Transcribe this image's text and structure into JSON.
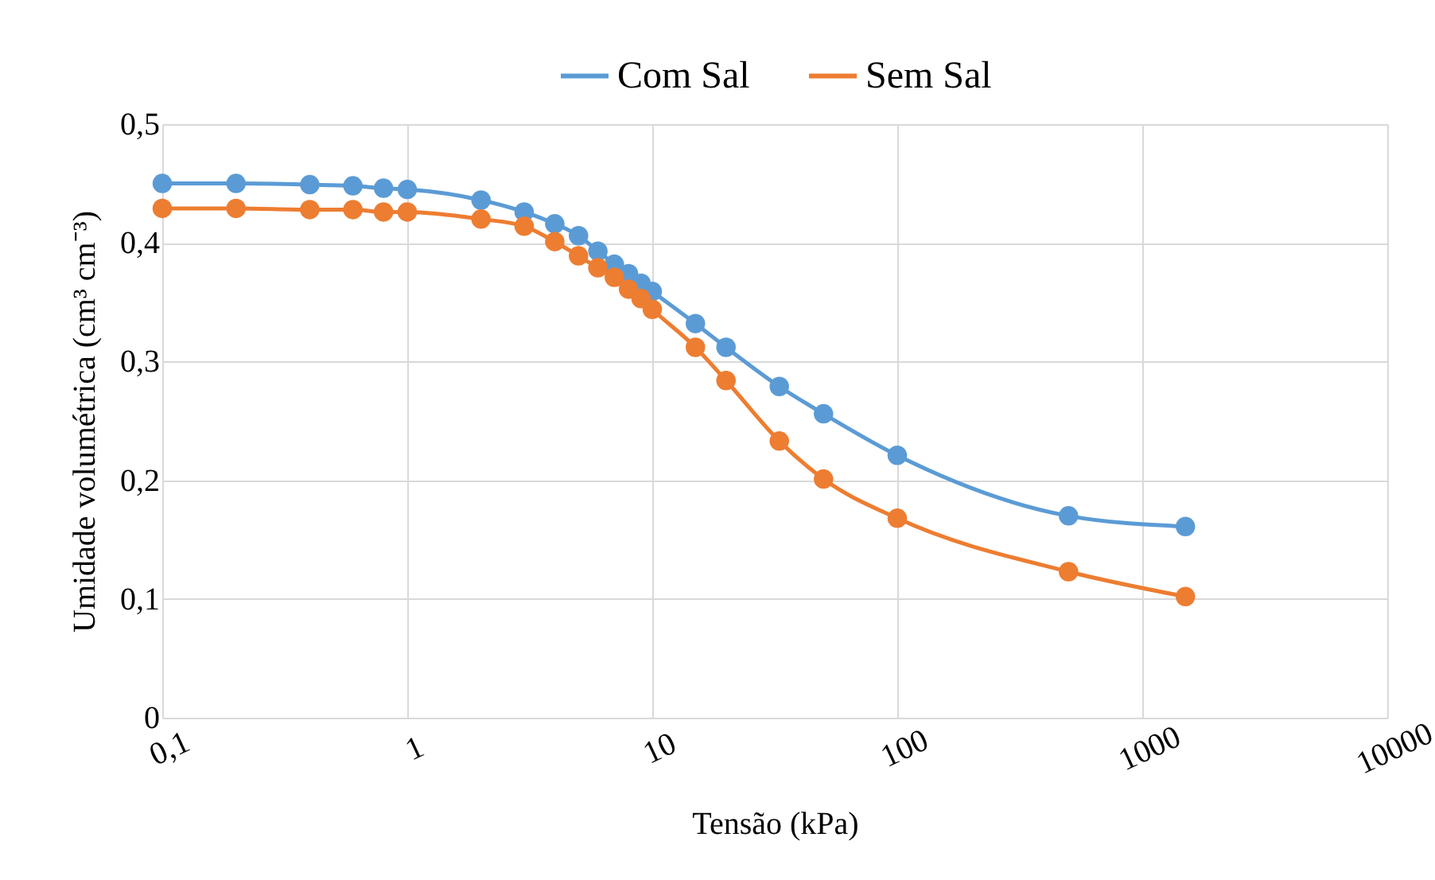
{
  "chart_data": {
    "type": "line",
    "xlabel": "Tensão (kPa)",
    "ylabel": "Umidade volumétrica (cm³ cm⁻³)",
    "x": [
      0.1,
      0.2,
      0.4,
      0.6,
      0.8,
      1,
      2,
      3,
      4,
      5,
      6,
      7,
      8,
      9,
      10,
      15,
      20,
      33,
      50,
      100,
      500,
      1500
    ],
    "series": [
      {
        "name": "Com Sal",
        "color": "#5b9bd5",
        "values": [
          0.45,
          0.45,
          0.449,
          0.448,
          0.446,
          0.445,
          0.436,
          0.426,
          0.416,
          0.406,
          0.393,
          0.382,
          0.374,
          0.366,
          0.359,
          0.332,
          0.312,
          0.279,
          0.256,
          0.221,
          0.17,
          0.161
        ]
      },
      {
        "name": "Sem Sal",
        "color": "#ed7d31",
        "values": [
          0.429,
          0.429,
          0.428,
          0.428,
          0.426,
          0.426,
          0.42,
          0.414,
          0.401,
          0.389,
          0.379,
          0.371,
          0.361,
          0.353,
          0.344,
          0.312,
          0.284,
          0.233,
          0.201,
          0.168,
          0.123,
          0.102
        ]
      }
    ],
    "log": "x",
    "xlim": [
      0.1,
      10000
    ],
    "xticks": [
      {
        "value": 0.1,
        "label": "0,1"
      },
      1,
      10,
      100,
      1000,
      10000
    ],
    "ylim": [
      0,
      0.5
    ],
    "yticks": [
      0,
      {
        "value": 0.1,
        "label": "0,1"
      },
      {
        "value": 0.2,
        "label": "0,2"
      },
      {
        "value": 0.3,
        "label": "0,3"
      },
      {
        "value": 0.4,
        "label": "0,4"
      },
      {
        "value": 0.5,
        "label": "0,5"
      }
    ],
    "grid": true,
    "legend": "top",
    "marker": "circle"
  }
}
